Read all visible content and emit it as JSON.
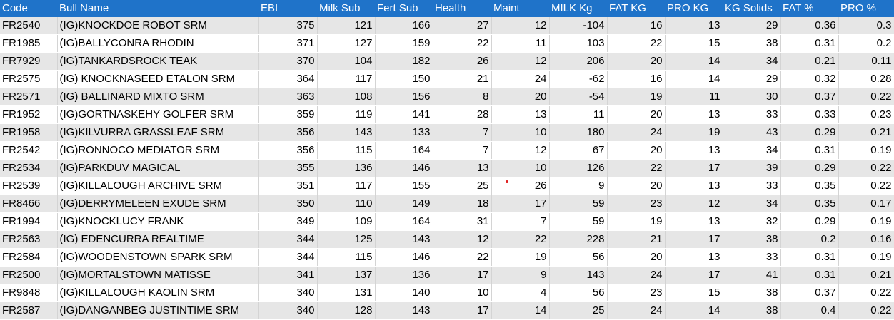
{
  "columns": [
    "Code",
    "Bull Name",
    "EBI",
    "Milk Sub",
    "Fert Sub",
    "Health",
    "Maint",
    "MILK Kg",
    "FAT KG",
    "PRO KG",
    "KG Solids",
    "FAT %",
    "PRO %"
  ],
  "rows": [
    [
      "FR2540",
      "(IG)KNOCKDOE ROBOT SRM",
      "375",
      "121",
      "166",
      "27",
      "12",
      "-104",
      "16",
      "13",
      "29",
      "0.36",
      "0.3"
    ],
    [
      "FR1985",
      "(IG)BALLYCONRA RHODIN",
      "371",
      "127",
      "159",
      "22",
      "11",
      "103",
      "22",
      "15",
      "38",
      "0.31",
      "0.2"
    ],
    [
      "FR7929",
      "(IG)TANKARDSROCK TEAK",
      "370",
      "104",
      "182",
      "26",
      "12",
      "206",
      "20",
      "14",
      "34",
      "0.21",
      "0.11"
    ],
    [
      "FR2575",
      "(IG) KNOCKNASEED ETALON SRM",
      "364",
      "117",
      "150",
      "21",
      "24",
      "-62",
      "16",
      "14",
      "29",
      "0.32",
      "0.28"
    ],
    [
      "FR2571",
      "(IG) BALLINARD MIXTO SRM",
      "363",
      "108",
      "156",
      "8",
      "20",
      "-54",
      "19",
      "11",
      "30",
      "0.37",
      "0.22"
    ],
    [
      "FR1952",
      "(IG)GORTNASKEHY GOLFER SRM",
      "359",
      "119",
      "141",
      "28",
      "13",
      "11",
      "20",
      "13",
      "33",
      "0.33",
      "0.23"
    ],
    [
      "FR1958",
      "(IG)KILVURRA GRASSLEAF SRM",
      "356",
      "143",
      "133",
      "7",
      "10",
      "180",
      "24",
      "19",
      "43",
      "0.29",
      "0.21"
    ],
    [
      "FR2542",
      "(IG)RONNOCO MEDIATOR SRM",
      "356",
      "115",
      "164",
      "7",
      "12",
      "67",
      "20",
      "13",
      "34",
      "0.31",
      "0.19"
    ],
    [
      "FR2534",
      "(IG)PARKDUV MAGICAL",
      "355",
      "136",
      "146",
      "13",
      "10",
      "126",
      "22",
      "17",
      "39",
      "0.29",
      "0.22"
    ],
    [
      "FR2539",
      "(IG)KILLALOUGH ARCHIVE SRM",
      "351",
      "117",
      "155",
      "25",
      "26",
      "9",
      "20",
      "13",
      "33",
      "0.35",
      "0.22"
    ],
    [
      "FR8466",
      "(IG)DERRYMELEEN EXUDE SRM",
      "350",
      "110",
      "149",
      "18",
      "17",
      "59",
      "23",
      "12",
      "34",
      "0.35",
      "0.17"
    ],
    [
      "FR1994",
      "(IG)KNOCKLUCY FRANK",
      "349",
      "109",
      "164",
      "31",
      "7",
      "59",
      "19",
      "13",
      "32",
      "0.29",
      "0.19"
    ],
    [
      "FR2563",
      "(IG) EDENCURRA REALTIME",
      "344",
      "125",
      "143",
      "12",
      "22",
      "228",
      "21",
      "17",
      "38",
      "0.2",
      "0.16"
    ],
    [
      "FR2584",
      "(IG)WOODENSTOWN SPARK SRM",
      "344",
      "115",
      "146",
      "22",
      "19",
      "56",
      "20",
      "13",
      "33",
      "0.31",
      "0.19"
    ],
    [
      "FR2500",
      "(IG)MORTALSTOWN MATISSE",
      "341",
      "137",
      "136",
      "17",
      "9",
      "143",
      "24",
      "17",
      "41",
      "0.31",
      "0.21"
    ],
    [
      "FR9848",
      "(IG)KILLALOUGH KAOLIN SRM",
      "340",
      "131",
      "140",
      "10",
      "4",
      "56",
      "23",
      "15",
      "38",
      "0.37",
      "0.22"
    ],
    [
      "FR2587",
      "(IG)DANGANBEG JUSTINTIME SRM",
      "340",
      "128",
      "143",
      "17",
      "14",
      "25",
      "24",
      "14",
      "38",
      "0.4",
      "0.22"
    ]
  ],
  "colors": {
    "header_bg": "#1f73c9",
    "header_text": "#ffffff",
    "band": "#e6e6e6",
    "marker": "#e02020"
  }
}
